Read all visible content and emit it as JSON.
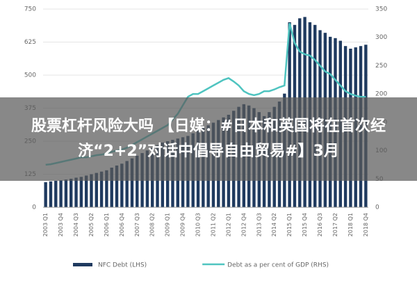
{
  "chart_data": {
    "type": "bar-line",
    "categories": [
      "2003 Q1",
      null,
      null,
      "2003 Q4",
      null,
      null,
      "2004 Q3",
      null,
      null,
      "2005 Q2",
      null,
      null,
      "2006 Q1",
      null,
      null,
      "2006 Q4",
      null,
      null,
      "2007 Q3",
      null,
      null,
      "2008 Q2",
      null,
      null,
      "2009 Q1",
      null,
      null,
      "2009 Q4",
      null,
      null,
      "2010 Q3",
      null,
      null,
      "2011 Q2",
      null,
      null,
      "2012 Q1",
      null,
      null,
      "2012 Q4",
      null,
      null,
      "2013 Q3",
      null,
      null,
      "2014 Q2",
      null,
      null,
      "2015 Q1",
      null,
      null,
      "2015 Q4",
      null,
      null,
      "2016 Q3",
      null,
      null,
      "2017 Q2",
      null,
      null,
      "2018 Q1",
      null,
      null,
      "2018 Q4"
    ],
    "series": [
      {
        "name": "NFC Debt (LHS)",
        "type": "bar",
        "color": "#1f3a5f",
        "values": [
          95,
          98,
          100,
          102,
          105,
          108,
          112,
          115,
          120,
          125,
          130,
          135,
          140,
          150,
          158,
          165,
          175,
          185,
          195,
          205,
          215,
          225,
          235,
          245,
          250,
          255,
          260,
          265,
          270,
          280,
          290,
          300,
          310,
          320,
          330,
          340,
          350,
          365,
          380,
          390,
          385,
          375,
          360,
          345,
          360,
          380,
          400,
          430,
          700,
          690,
          715,
          720,
          700,
          690,
          670,
          660,
          645,
          640,
          630,
          610,
          600,
          605,
          610,
          615
        ]
      },
      {
        "name": "Debt as a per cent of GDP (RHS)",
        "type": "line",
        "axis": "y2",
        "color": "#4fc4c0",
        "values": [
          75,
          76,
          78,
          80,
          82,
          84,
          86,
          88,
          88,
          90,
          92,
          93,
          95,
          98,
          100,
          102,
          105,
          110,
          115,
          120,
          125,
          130,
          135,
          140,
          145,
          155,
          165,
          180,
          195,
          200,
          200,
          205,
          210,
          215,
          220,
          225,
          228,
          222,
          215,
          205,
          200,
          198,
          200,
          205,
          205,
          208,
          212,
          215,
          325,
          290,
          275,
          270,
          268,
          260,
          250,
          240,
          235,
          225,
          215,
          205,
          200,
          197,
          195,
          195
        ]
      }
    ],
    "ylim": [
      0,
      750
    ],
    "yticks": [
      0,
      125,
      250,
      375,
      500,
      625,
      750
    ],
    "y2lim": [
      0,
      350
    ],
    "y2ticks": [
      0,
      50,
      100,
      150,
      200,
      250,
      300,
      350
    ],
    "grid": true
  },
  "caption": "股票杠杆风险大吗 【日媒：#日本和英国将在首次经济“2+2”对话中倡导自由贸易#】3月"
}
